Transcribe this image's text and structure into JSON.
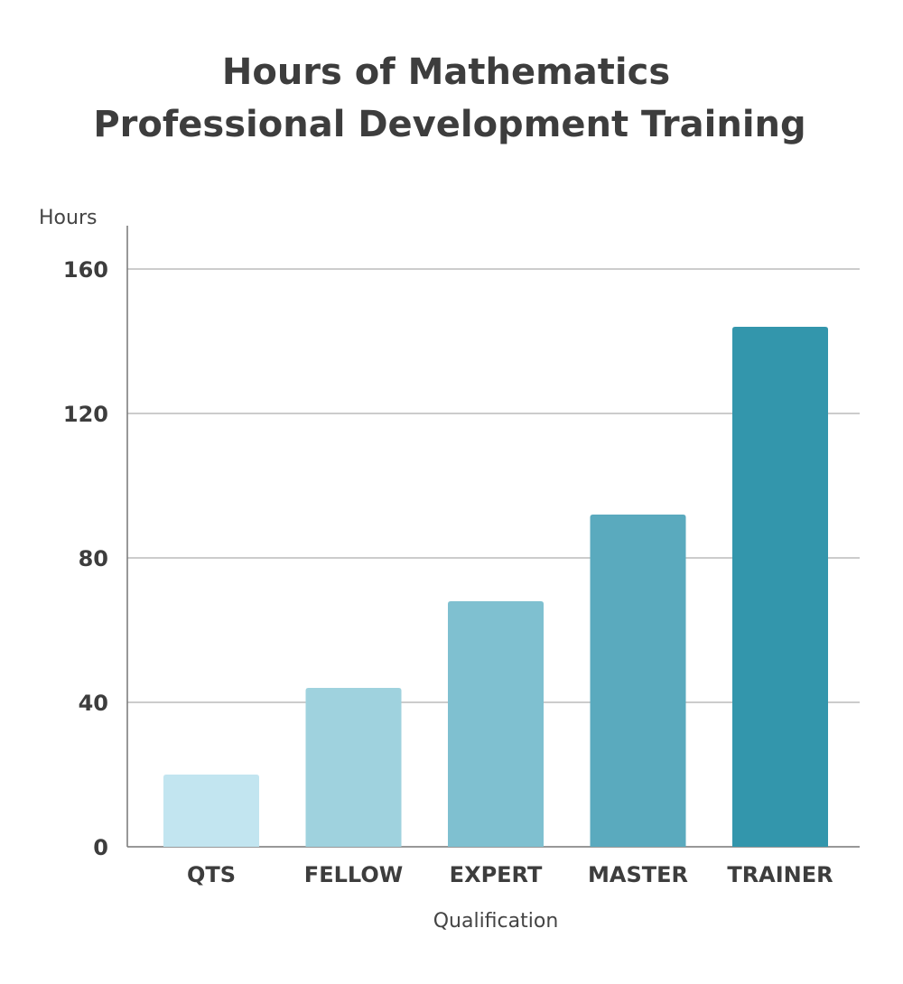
{
  "chart_data": {
    "type": "bar",
    "title": [
      "Hours of Mathematics",
      "Professional Development Training"
    ],
    "y_axis_label": "Hours",
    "x_axis_label": "Qualification",
    "categories": [
      "QTS",
      "FELLOW",
      "EXPERT",
      "MASTER",
      "TRAINER"
    ],
    "values": [
      20,
      44,
      68,
      92,
      144
    ],
    "colors": [
      "#c2e5f0",
      "#9fd2de",
      "#7fc0d0",
      "#5aaabe",
      "#3396ac"
    ],
    "ylim": [
      0,
      172
    ],
    "yticks": [
      0,
      40,
      80,
      120,
      160
    ],
    "grid": true
  }
}
